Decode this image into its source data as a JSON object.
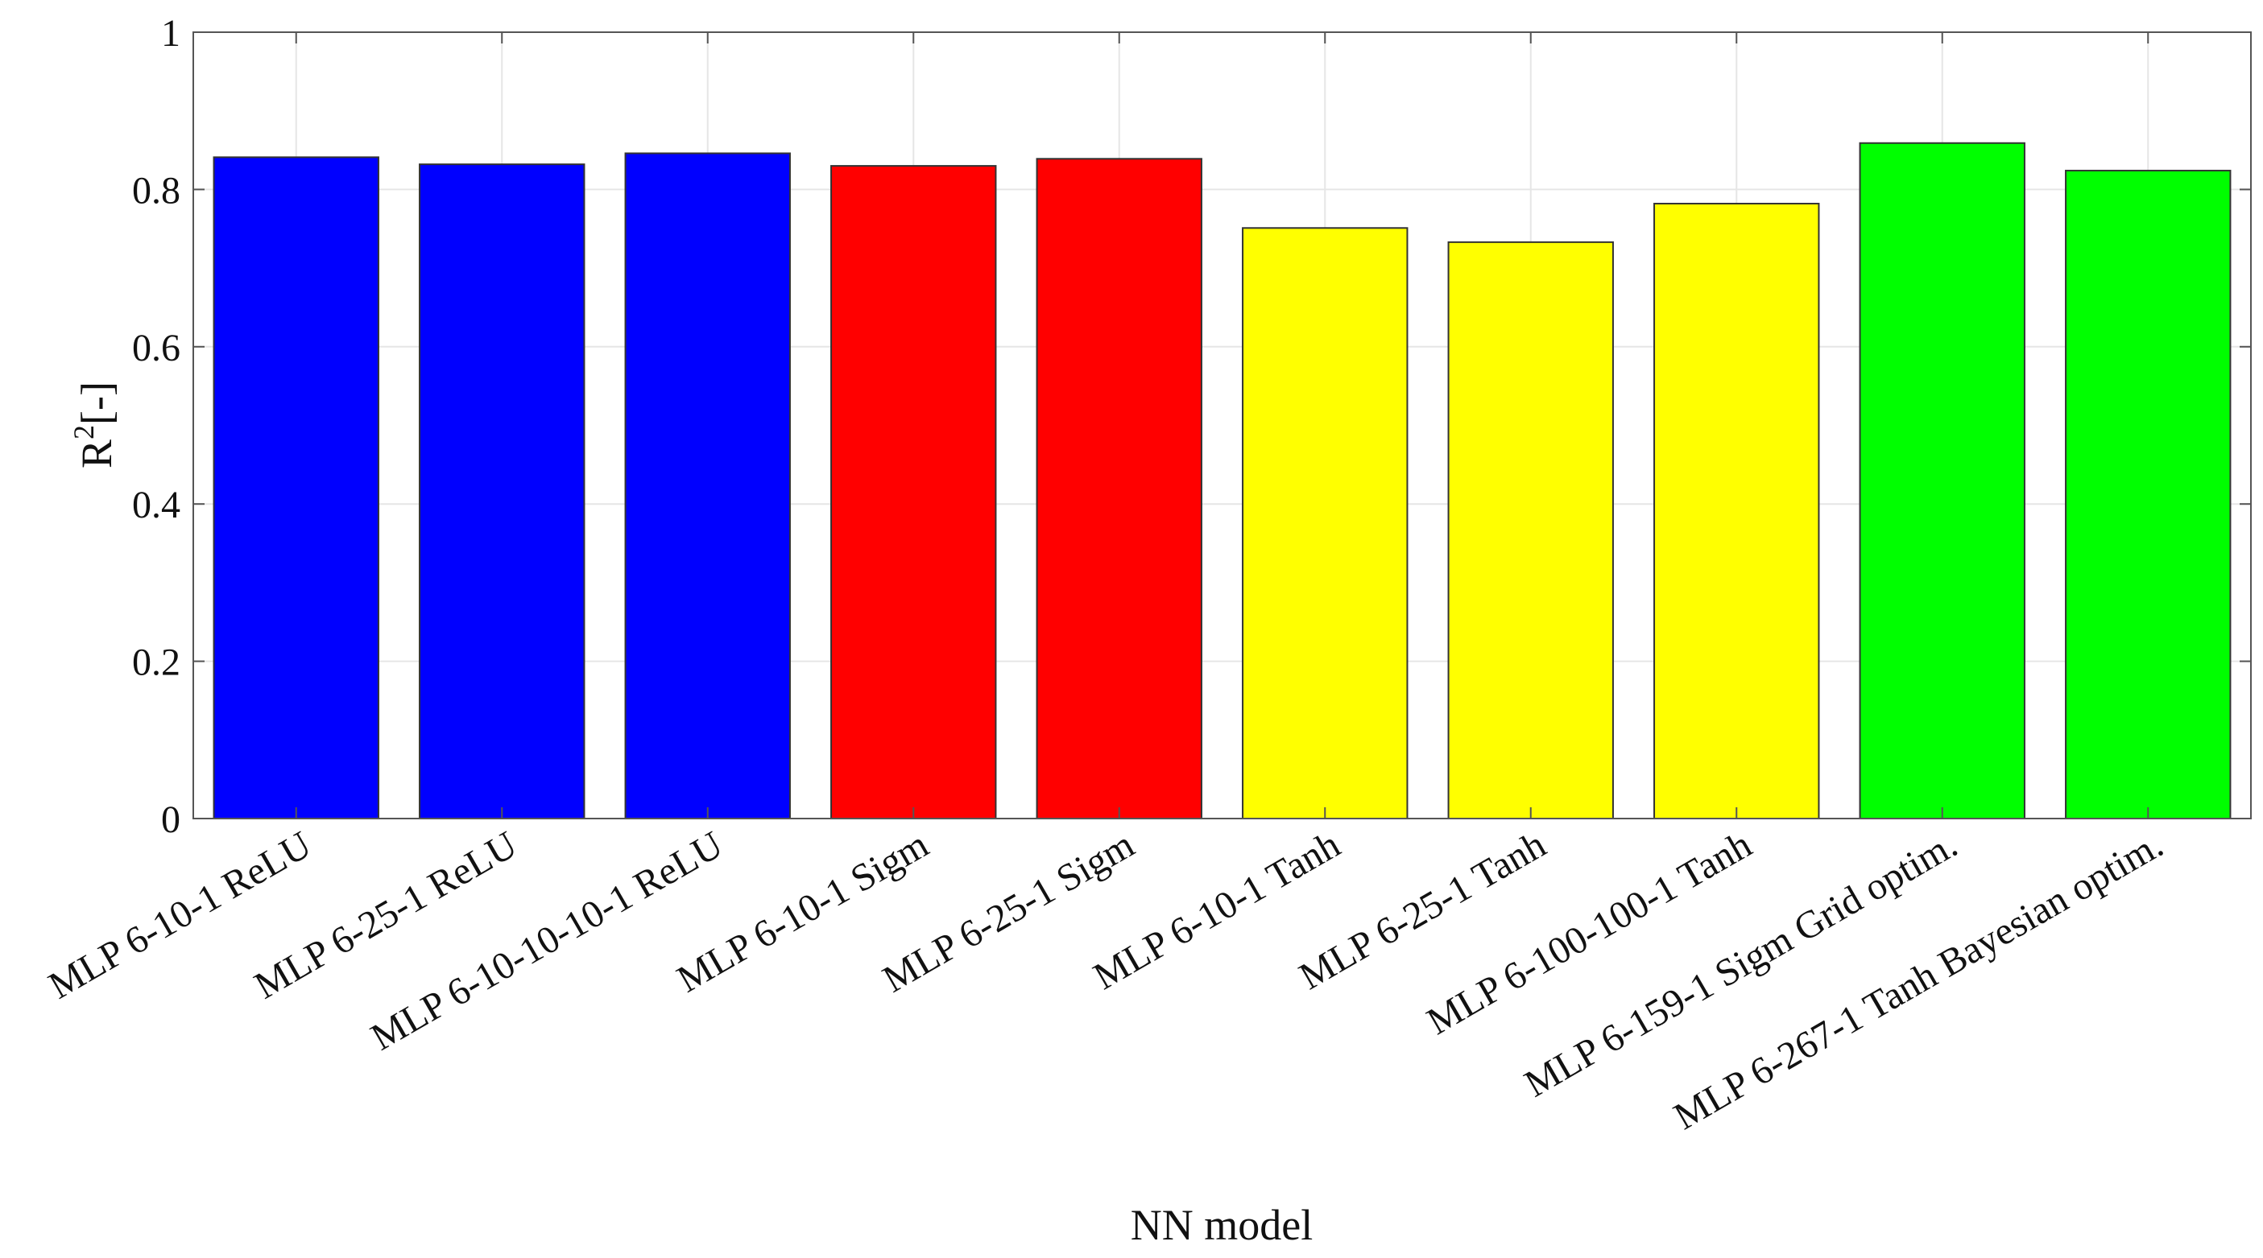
{
  "chart_data": {
    "type": "bar",
    "title": "",
    "xlabel": "NN model",
    "ylabel": "R",
    "ylabel_superscript": "2",
    "ylabel_suffix": "[-]",
    "ylim": [
      0,
      1
    ],
    "yticks": [
      "0",
      "0.2",
      "0.4",
      "0.6",
      "0.8",
      "1"
    ],
    "grid": true,
    "categories": [
      "MLP 6-10-1 ReLU",
      "MLP 6-25-1 ReLU",
      "MLP 6-10-10-10-1 ReLU",
      "MLP 6-10-1 Sigm",
      "MLP 6-25-1 Sigm",
      "MLP 6-10-1 Tanh",
      "MLP 6-25-1 Tanh",
      "MLP 6-100-100-1 Tanh",
      "MLP 6-159-1 Sigm Grid optim.",
      "MLP 6-267-1 Tanh Bayesian optim."
    ],
    "values": [
      0.841,
      0.832,
      0.846,
      0.83,
      0.839,
      0.751,
      0.733,
      0.782,
      0.859,
      0.824
    ],
    "colors": [
      "#0000ff",
      "#0000ff",
      "#0000ff",
      "#ff0000",
      "#ff0000",
      "#ffff00",
      "#ffff00",
      "#ffff00",
      "#00ff00",
      "#00ff00"
    ]
  }
}
